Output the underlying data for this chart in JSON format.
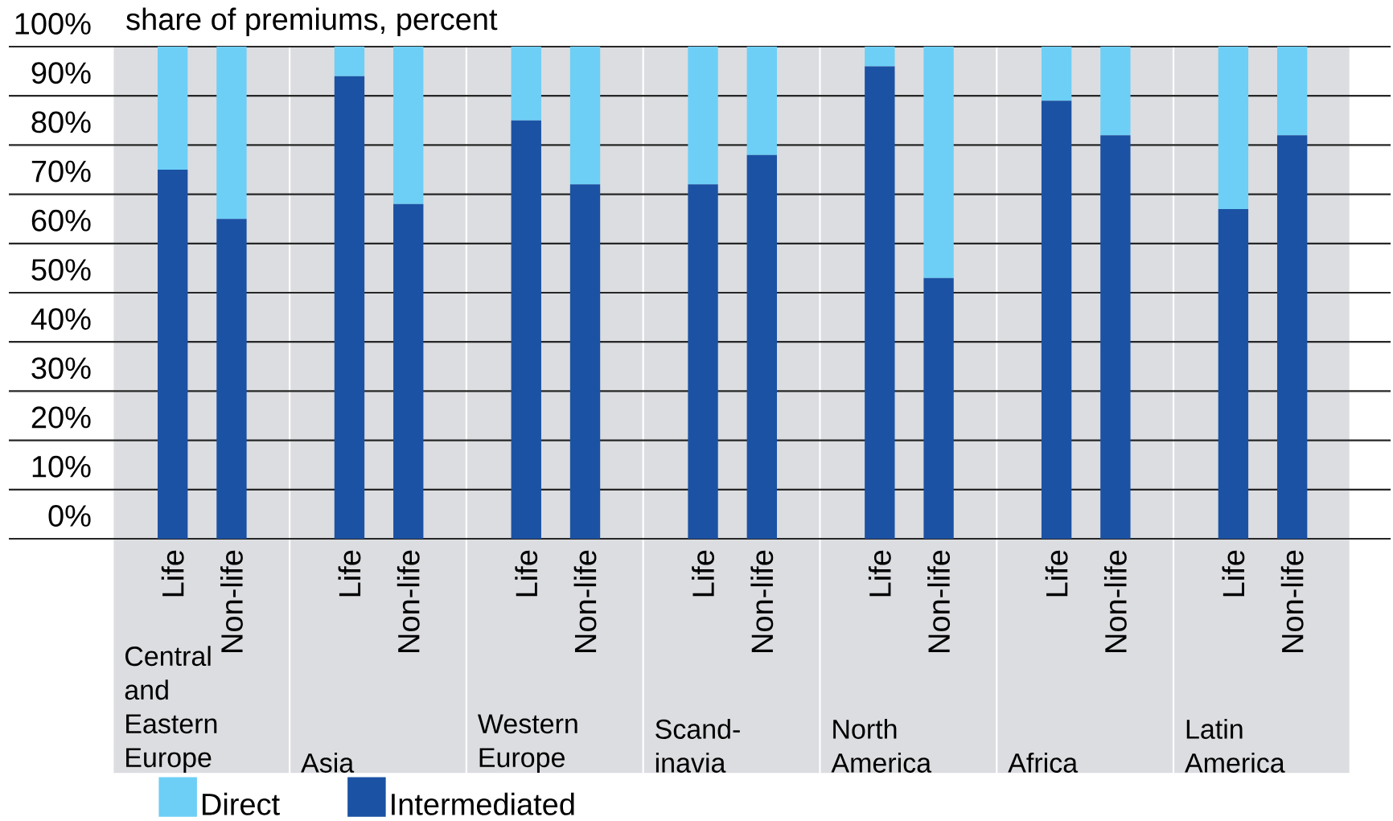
{
  "chart_data": {
    "type": "bar",
    "stacked": true,
    "ylabel": "share of premiums, percent",
    "categories": [
      "Life",
      "Non-life",
      "Life",
      "Non-life",
      "Life",
      "Non-life",
      "Life",
      "Non-life",
      "Life",
      "Non-life",
      "Life",
      "Non-life",
      "Life",
      "Non-life"
    ],
    "annotations": [
      "Central and Eastern Europe",
      "Asia",
      "Western Europe",
      "Scand-inavia",
      "North America",
      "Africa",
      "Latin America"
    ],
    "series": [
      {
        "name": "Intermediated",
        "color": "#1b52a4",
        "values": [
          75,
          65,
          94,
          68,
          85,
          72,
          72,
          78,
          96,
          53,
          89,
          82,
          67,
          82
        ]
      },
      {
        "name": "Direct",
        "color": "#6dcff6",
        "values": [
          25,
          35,
          6,
          32,
          15,
          28,
          28,
          22,
          4,
          47,
          11,
          18,
          33,
          18
        ]
      }
    ],
    "ylim": [
      0,
      100
    ],
    "yticks": [
      {
        "value": 0,
        "label": "0%"
      },
      {
        "value": 10,
        "label": "10%"
      },
      {
        "value": 20,
        "label": "20%"
      },
      {
        "value": 30,
        "label": "30%"
      },
      {
        "value": 40,
        "label": "40%"
      },
      {
        "value": 50,
        "label": "50%"
      },
      {
        "value": 60,
        "label": "60%"
      },
      {
        "value": 70,
        "label": "70%"
      },
      {
        "value": 80,
        "label": "80%"
      },
      {
        "value": 90,
        "label": "90%"
      },
      {
        "value": 100,
        "label": "100%"
      }
    ],
    "grid": "y",
    "legend": "bottom left"
  }
}
